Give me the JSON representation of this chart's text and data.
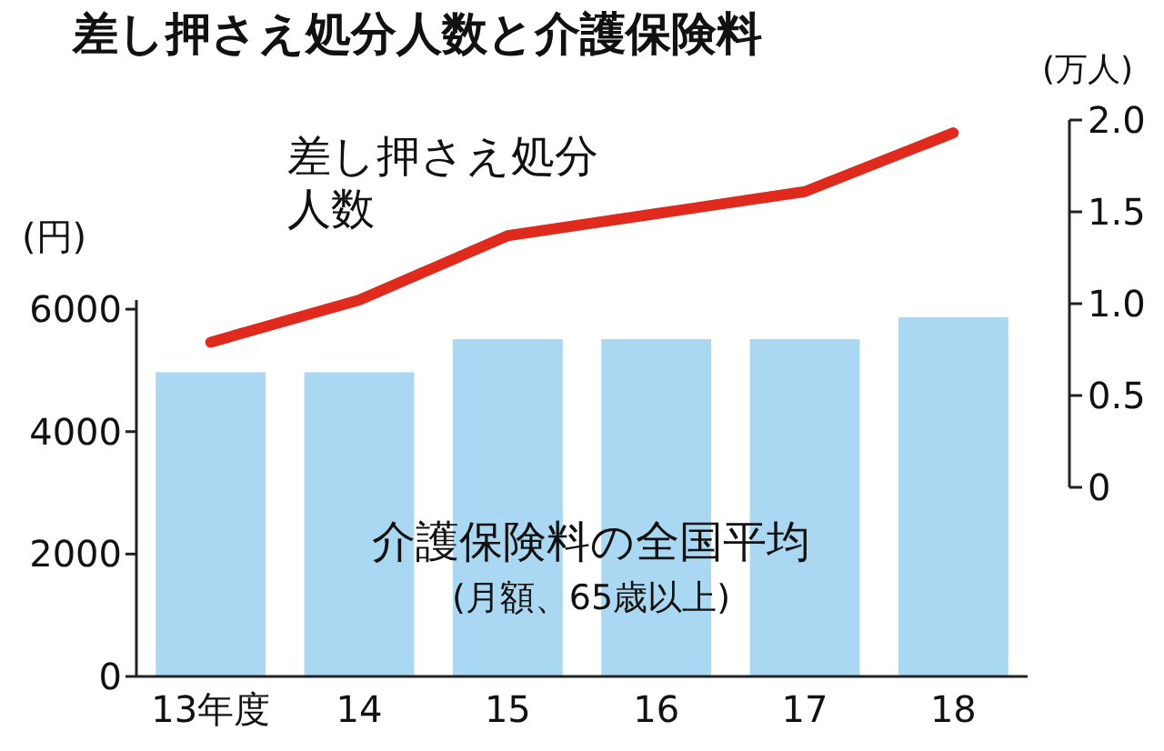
{
  "chart_data": {
    "type": "bar",
    "title": "差し押さえ処分人数と介護保険料",
    "ylabel": "(円)",
    "y2label": "(万人)",
    "categories": [
      "13年度",
      "14",
      "15",
      "16",
      "17",
      "18"
    ],
    "series": [
      {
        "name": "介護保険料の全国平均",
        "color": "#aad8f2",
        "values": [
          4970,
          4970,
          5510,
          5510,
          5510,
          5870
        ]
      },
      {
        "type": "line",
        "axis": "y2",
        "name": "差し押さえ処分人数",
        "color": "#e02a1e",
        "values": [
          0.79,
          1.02,
          1.37,
          1.49,
          1.61,
          1.93
        ]
      }
    ],
    "annotations": [
      "(月額、65歳以上)"
    ],
    "ylim": [
      0,
      6150
    ],
    "yticks": [
      0,
      2000,
      4000,
      6000
    ],
    "y2lim": [
      0,
      2
    ],
    "y2ticks": [
      0,
      0.5,
      {
        "value": 1,
        "label": "1.0"
      },
      1.5,
      {
        "value": 2,
        "label": "2.0"
      }
    ]
  }
}
